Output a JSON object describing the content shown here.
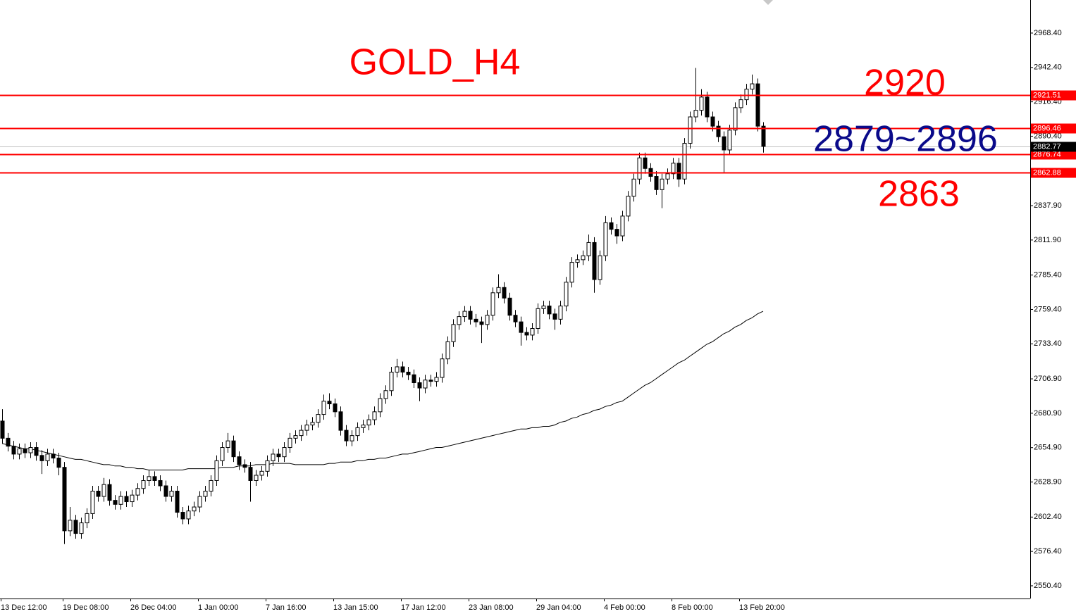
{
  "chart_data": {
    "type": "candlestick",
    "title": "GOLD_H4",
    "categories": [
      "13 Dec 12:00",
      null,
      null,
      null,
      null,
      null,
      null,
      null,
      null,
      null,
      null,
      "19 Dec 08:00",
      null,
      null,
      null,
      null,
      null,
      null,
      null,
      null,
      null,
      null,
      null,
      "26 Dec 04:00",
      null,
      null,
      null,
      null,
      null,
      null,
      null,
      null,
      null,
      null,
      null,
      "1 Jan 00:00",
      null,
      null,
      null,
      null,
      null,
      null,
      null,
      null,
      null,
      null,
      null,
      "7 Jan 16:00",
      null,
      null,
      null,
      null,
      null,
      null,
      null,
      null,
      null,
      null,
      null,
      "13 Jan 15:00",
      null,
      null,
      null,
      null,
      null,
      null,
      null,
      null,
      null,
      null,
      null,
      "17 Jan 12:00",
      null,
      null,
      null,
      null,
      null,
      null,
      null,
      null,
      null,
      null,
      null,
      "23 Jan 08:00",
      null,
      null,
      null,
      null,
      null,
      null,
      null,
      null,
      null,
      null,
      null,
      "29 Jan 04:00",
      null,
      null,
      null,
      null,
      null,
      null,
      null,
      null,
      null,
      null,
      null,
      "4 Feb 00:00",
      null,
      null,
      null,
      null,
      null,
      null,
      null,
      null,
      null,
      null,
      null,
      "8 Feb 00:00",
      null,
      null,
      null,
      null,
      null,
      null,
      null,
      null,
      null,
      null,
      null,
      "13 Feb 20:00",
      null,
      null,
      null,
      null
    ],
    "open": [
      2675,
      2662,
      2656,
      2650,
      2654,
      2651,
      2655,
      2649,
      2645,
      2650,
      2647,
      2640,
      2592,
      2600,
      2590,
      2598,
      2605,
      2622,
      2618,
      2627,
      2615,
      2612,
      2618,
      2614,
      2619,
      2624,
      2630,
      2633,
      2630,
      2626,
      2618,
      2622,
      2606,
      2601,
      2607,
      2610,
      2618,
      2622,
      2630,
      2645,
      2655,
      2660,
      2648,
      2642,
      2640,
      2630,
      2634,
      2637,
      2645,
      2650,
      2648,
      2655,
      2662,
      2664,
      2668,
      2672,
      2674,
      2680,
      2690,
      2688,
      2682,
      2668,
      2660,
      2664,
      2670,
      2672,
      2676,
      2682,
      2692,
      2698,
      2712,
      2716,
      2712,
      2710,
      2704,
      2700,
      2706,
      2705,
      2708,
      2722,
      2735,
      2748,
      2754,
      2758,
      2752,
      2750,
      2748,
      2755,
      2772,
      2776,
      2768,
      2755,
      2750,
      2742,
      2740,
      2745,
      2760,
      2762,
      2756,
      2752,
      2762,
      2780,
      2795,
      2797,
      2800,
      2810,
      2782,
      2800,
      2825,
      2820,
      2815,
      2830,
      2845,
      2858,
      2874,
      2866,
      2860,
      2850,
      2858,
      2862,
      2870,
      2858,
      2885,
      2905,
      2910,
      2920,
      2905,
      2898,
      2890,
      2880,
      2895,
      2912,
      2918,
      2926,
      2930,
      2898
    ],
    "high": [
      2684,
      2666,
      2660,
      2658,
      2658,
      2659,
      2659,
      2653,
      2654,
      2654,
      2651,
      2644,
      2610,
      2604,
      2602,
      2609,
      2626,
      2626,
      2632,
      2631,
      2619,
      2622,
      2622,
      2623,
      2628,
      2634,
      2638,
      2637,
      2634,
      2630,
      2626,
      2626,
      2610,
      2611,
      2614,
      2622,
      2626,
      2634,
      2649,
      2659,
      2666,
      2664,
      2652,
      2646,
      2644,
      2638,
      2641,
      2649,
      2654,
      2654,
      2659,
      2666,
      2668,
      2672,
      2676,
      2678,
      2684,
      2695,
      2696,
      2692,
      2686,
      2672,
      2668,
      2674,
      2676,
      2680,
      2686,
      2696,
      2702,
      2716,
      2722,
      2720,
      2716,
      2714,
      2708,
      2710,
      2710,
      2712,
      2726,
      2739,
      2752,
      2758,
      2762,
      2762,
      2756,
      2754,
      2759,
      2776,
      2786,
      2780,
      2772,
      2759,
      2754,
      2746,
      2749,
      2764,
      2766,
      2766,
      2760,
      2766,
      2784,
      2799,
      2801,
      2804,
      2816,
      2814,
      2804,
      2830,
      2829,
      2824,
      2834,
      2849,
      2862,
      2878,
      2878,
      2870,
      2864,
      2862,
      2866,
      2874,
      2874,
      2889,
      2909,
      2942,
      2926,
      2924,
      2909,
      2902,
      2894,
      2899,
      2916,
      2922,
      2930,
      2937,
      2934,
      2901
    ],
    "low": [
      2658,
      2652,
      2646,
      2646,
      2647,
      2647,
      2645,
      2635,
      2641,
      2643,
      2634,
      2582,
      2588,
      2586,
      2586,
      2594,
      2601,
      2614,
      2614,
      2611,
      2608,
      2608,
      2610,
      2610,
      2615,
      2620,
      2626,
      2626,
      2622,
      2614,
      2614,
      2602,
      2597,
      2597,
      2603,
      2606,
      2614,
      2618,
      2626,
      2641,
      2651,
      2644,
      2638,
      2636,
      2614,
      2626,
      2630,
      2633,
      2641,
      2644,
      2644,
      2651,
      2658,
      2660,
      2664,
      2668,
      2670,
      2676,
      2684,
      2678,
      2664,
      2656,
      2656,
      2660,
      2666,
      2668,
      2672,
      2678,
      2688,
      2694,
      2708,
      2708,
      2706,
      2700,
      2690,
      2696,
      2701,
      2701,
      2704,
      2718,
      2731,
      2744,
      2750,
      2748,
      2746,
      2734,
      2744,
      2751,
      2768,
      2764,
      2751,
      2746,
      2732,
      2736,
      2736,
      2741,
      2756,
      2752,
      2744,
      2748,
      2758,
      2776,
      2791,
      2793,
      2796,
      2772,
      2778,
      2796,
      2816,
      2809,
      2811,
      2826,
      2841,
      2854,
      2862,
      2856,
      2846,
      2836,
      2854,
      2858,
      2852,
      2854,
      2881,
      2901,
      2906,
      2901,
      2894,
      2886,
      2863,
      2876,
      2891,
      2908,
      2914,
      2922,
      2894,
      2878
    ],
    "close": [
      2662,
      2656,
      2650,
      2654,
      2651,
      2655,
      2649,
      2645,
      2650,
      2647,
      2640,
      2592,
      2600,
      2590,
      2598,
      2605,
      2622,
      2618,
      2627,
      2615,
      2612,
      2618,
      2614,
      2619,
      2624,
      2630,
      2633,
      2630,
      2626,
      2618,
      2622,
      2606,
      2601,
      2607,
      2610,
      2618,
      2622,
      2630,
      2645,
      2655,
      2660,
      2648,
      2642,
      2640,
      2630,
      2634,
      2637,
      2645,
      2650,
      2648,
      2655,
      2662,
      2664,
      2668,
      2672,
      2674,
      2680,
      2690,
      2688,
      2682,
      2668,
      2660,
      2664,
      2670,
      2672,
      2676,
      2682,
      2692,
      2698,
      2712,
      2716,
      2712,
      2710,
      2704,
      2700,
      2706,
      2705,
      2708,
      2722,
      2735,
      2748,
      2754,
      2758,
      2752,
      2750,
      2748,
      2755,
      2772,
      2776,
      2768,
      2755,
      2750,
      2742,
      2740,
      2745,
      2760,
      2762,
      2756,
      2752,
      2762,
      2780,
      2795,
      2797,
      2800,
      2810,
      2782,
      2800,
      2825,
      2820,
      2815,
      2830,
      2845,
      2858,
      2874,
      2866,
      2860,
      2850,
      2858,
      2862,
      2870,
      2858,
      2885,
      2905,
      2910,
      2920,
      2905,
      2898,
      2890,
      2880,
      2895,
      2912,
      2918,
      2926,
      2930,
      2898,
      2882.77
    ],
    "ma": {
      "color": "#000000",
      "values": [
        2658,
        2657,
        2656,
        2655,
        2654,
        2654,
        2653,
        2652,
        2651,
        2650,
        2649,
        2648,
        2647,
        2646,
        2646,
        2645,
        2644,
        2643,
        2642,
        2642,
        2641,
        2641,
        2640,
        2640,
        2639,
        2639,
        2638,
        2638,
        2638,
        2638,
        2638,
        2638,
        2638,
        2639,
        2639,
        2639,
        2639,
        2639,
        2639,
        2640,
        2640,
        2640,
        2641,
        2641,
        2641,
        2642,
        2642,
        2642,
        2643,
        2643,
        2643,
        2643,
        2642,
        2642,
        2642,
        2642,
        2642,
        2642,
        2643,
        2643,
        2644,
        2644,
        2644,
        2645,
        2645,
        2646,
        2646,
        2647,
        2647,
        2648,
        2649,
        2650,
        2650,
        2651,
        2652,
        2653,
        2654,
        2655,
        2655,
        2656,
        2657,
        2658,
        2659,
        2660,
        2661,
        2662,
        2663,
        2664,
        2665,
        2666,
        2667,
        2668,
        2669,
        2669,
        2670,
        2670,
        2671,
        2671,
        2672,
        2674,
        2675,
        2677,
        2678,
        2680,
        2681,
        2683,
        2684,
        2686,
        2687,
        2689,
        2690,
        2693,
        2696,
        2699,
        2702,
        2704,
        2707,
        2710,
        2713,
        2716,
        2719,
        2721,
        2724,
        2727,
        2730,
        2733,
        2735,
        2738,
        2741,
        2743,
        2746,
        2748,
        2751,
        2753,
        2756,
        2758
      ]
    },
    "bull_color": "#ffffff",
    "bear_color": "#000000",
    "outline_color": "#000000",
    "levels": [
      2921.51,
      2896.46,
      2876.74,
      2862.88
    ],
    "level_color": "#ff0000",
    "current_price": 2882.77,
    "current_color": "#c0c0c0",
    "annotations": [
      {
        "text": "2920",
        "color": "#ff0000"
      },
      {
        "text": "2879~2896",
        "color": "#0a0a8a"
      },
      {
        "text": "2863",
        "color": "#ff0000"
      }
    ],
    "title_color": "#ff0000",
    "ylim": [
      2540.8,
      2993.4
    ],
    "yticks": [
      {
        "value": 2550.4,
        "label": "2550.40"
      },
      {
        "value": 2576.4,
        "label": "2576.40"
      },
      {
        "value": 2602.4,
        "label": "2602.40"
      },
      {
        "value": 2628.9,
        "label": "2628.90"
      },
      {
        "value": 2654.9,
        "label": "2654.90"
      },
      {
        "value": 2680.9,
        "label": "2680.90"
      },
      {
        "value": 2706.9,
        "label": "2706.90"
      },
      {
        "value": 2733.4,
        "label": "2733.40"
      },
      {
        "value": 2759.4,
        "label": "2759.40"
      },
      {
        "value": 2785.4,
        "label": "2785.40"
      },
      {
        "value": 2811.9,
        "label": "2811.90"
      },
      {
        "value": 2837.9,
        "label": "2837.90"
      },
      {
        "value": 2890.4,
        "label": "2890.40"
      },
      {
        "value": 2916.4,
        "label": "2916.40"
      },
      {
        "value": 2942.4,
        "label": "2942.40"
      },
      {
        "value": 2968.4,
        "label": "2968.40"
      }
    ]
  }
}
